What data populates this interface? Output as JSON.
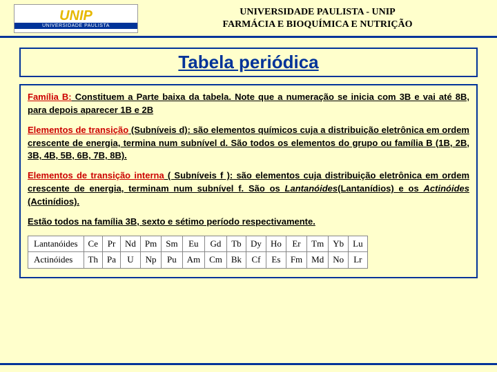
{
  "header": {
    "logo_top": "UNIP",
    "logo_bottom": "UNIVERSIDADE PAULISTA",
    "line1": "UNIVERSIDADE PAULISTA - UNIP",
    "line2": "FARMÁCIA E BIOQUÍMICA E NUTRIÇÃO"
  },
  "title": "Tabela periódica",
  "para1": {
    "lead": "Família B:",
    "rest": " Constituem a Parte baixa da tabela. Note que a numeração se inicia com 3B e vai até 8B, para depois aparecer 1B e 2B"
  },
  "para2": {
    "lead": "Elementos de transição",
    "paren": " (Subníveis d):",
    "rest": " são elementos químicos cuja a distribuição eletrônica em ordem crescente de energia, termina num subnível d. São todos os elementos do grupo ou família B (1B, 2B, 3B, 4B, 5B, 6B, 7B, 8B)."
  },
  "para3": {
    "lead": "Elementos de transição interna",
    "paren": " ( Subníveis f ):",
    "rest1": " são elementos cuja distribuição eletrônica em ordem crescente de energia, terminam num subnível f. São os ",
    "lant": "Lantanóides",
    "lantp": "(Lantanídios)",
    "and": " e os ",
    "act": "Actinóides",
    "actp": " (Actinídios)."
  },
  "para4": "Estão todos na família 3B, sexto e sétimo período respectivamente.",
  "table": {
    "row1_label": "Lantanóides",
    "row1": [
      "Ce",
      "Pr",
      "Nd",
      "Pm",
      "Sm",
      "Eu",
      "Gd",
      "Tb",
      "Dy",
      "Ho",
      "Er",
      "Tm",
      "Yb",
      "Lu"
    ],
    "row2_label": "Actinóides",
    "row2": [
      "Th",
      "Pa",
      "U",
      "Np",
      "Pu",
      "Am",
      "Cm",
      "Bk",
      "Cf",
      "Es",
      "Fm",
      "Md",
      "No",
      "Lr"
    ]
  }
}
